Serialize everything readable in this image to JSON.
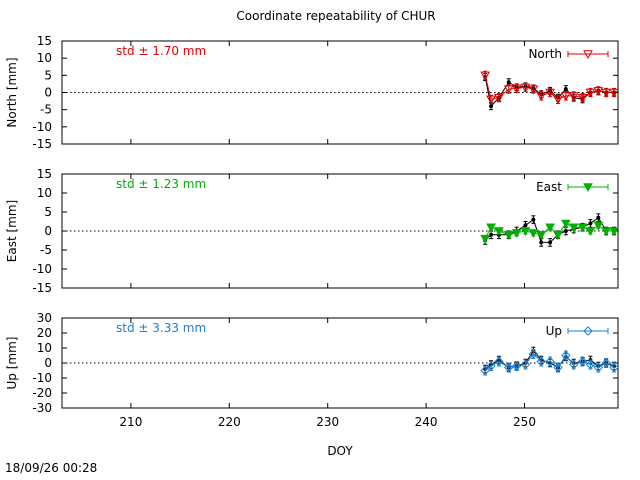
{
  "title": "Coordinate repeatability of CHUR",
  "timestamp": "18/09/26 00:28",
  "chart_data": [
    {
      "type": "line",
      "panel": "north",
      "ylabel": "North [mm]",
      "legend": "North",
      "legend_position": "top-right",
      "std_label": "std ± 1.70 mm",
      "color": "#e00000",
      "marker": "triangle-down-open",
      "xlim": [
        203,
        259.5
      ],
      "ylim": [
        -15,
        15
      ],
      "yticks": [
        15,
        10,
        5,
        0,
        -5,
        -10,
        -15
      ],
      "zero_line": true,
      "black_series": {
        "x": [
          246,
          246.6,
          247.4,
          248.4,
          249.2,
          250.1,
          250.9,
          251.7,
          252.6,
          253.4,
          254.2,
          255.0,
          255.9,
          256.7,
          257.5,
          258.3,
          259.1
        ],
        "y": [
          4.5,
          -4,
          -1.5,
          3,
          1.5,
          1.8,
          1.2,
          -0.5,
          0.5,
          -1.5,
          1,
          -1.5,
          -2,
          0,
          0.5,
          0,
          0
        ],
        "err": [
          1,
          1,
          1,
          1,
          1,
          1,
          1,
          1,
          1,
          1,
          1,
          1,
          1,
          1,
          1,
          1,
          1
        ]
      },
      "series": {
        "name": "North",
        "x": [
          246,
          246.6,
          247.4,
          248.4,
          249.2,
          250.1,
          250.9,
          251.7,
          252.6,
          253.4,
          254.2,
          255.0,
          255.9,
          256.7,
          257.5,
          258.3,
          259.1
        ],
        "y": [
          5,
          -2,
          -1.5,
          1,
          1.2,
          1.5,
          1,
          -1,
          0,
          -2,
          -1,
          -1,
          -1.5,
          0,
          0.5,
          0,
          0
        ],
        "err": [
          1.2,
          1.2,
          1.2,
          1.2,
          1.2,
          1.2,
          1.2,
          1.2,
          1.2,
          1.2,
          1.2,
          1.2,
          1.2,
          1.2,
          1.2,
          1.2,
          1.2
        ]
      }
    },
    {
      "type": "line",
      "panel": "east",
      "ylabel": "East [mm]",
      "legend": "East",
      "legend_position": "top-right",
      "std_label": "std ± 1.23 mm",
      "color": "#00b000",
      "marker": "triangle-down-filled",
      "xlim": [
        203,
        259.5
      ],
      "ylim": [
        -15,
        15
      ],
      "yticks": [
        15,
        10,
        5,
        0,
        -5,
        -10,
        -15
      ],
      "zero_line": true,
      "black_series": {
        "x": [
          246,
          246.6,
          247.4,
          248.4,
          249.2,
          250.1,
          250.9,
          251.7,
          252.6,
          253.4,
          254.2,
          255.0,
          255.9,
          256.7,
          257.5,
          258.3,
          259.1
        ],
        "y": [
          -2.5,
          -1,
          -1,
          -1,
          0,
          1.5,
          3,
          -3,
          -3,
          -1,
          0,
          0.5,
          1,
          2,
          3.5,
          0,
          0
        ],
        "err": [
          1,
          1,
          1,
          1,
          1,
          1,
          1,
          1,
          1,
          1,
          1,
          1,
          1,
          1,
          1,
          1,
          1
        ]
      },
      "series": {
        "name": "East",
        "x": [
          246,
          246.6,
          247.4,
          248.4,
          249.2,
          250.1,
          250.9,
          251.7,
          252.6,
          253.4,
          254.2,
          255.0,
          255.9,
          256.7,
          257.5,
          258.3,
          259.1
        ],
        "y": [
          -2,
          1,
          0,
          -1,
          -0.5,
          0,
          -0.5,
          -1,
          1,
          -1,
          2,
          1,
          1,
          0,
          1.5,
          0,
          0
        ],
        "err": [
          0.8,
          0.8,
          0.8,
          0.8,
          0.8,
          0.8,
          0.8,
          0.8,
          0.8,
          0.8,
          0.8,
          0.8,
          0.8,
          0.8,
          0.8,
          0.8,
          0.8
        ]
      }
    },
    {
      "type": "line",
      "panel": "up",
      "ylabel": "Up [mm]",
      "legend": "Up",
      "legend_position": "top-right",
      "std_label": "std ± 3.33 mm",
      "color": "#1e7fd0",
      "marker": "diamond-open",
      "xlim": [
        203,
        259.5
      ],
      "ylim": [
        -30,
        30
      ],
      "yticks": [
        30,
        20,
        10,
        0,
        -10,
        -20,
        -30
      ],
      "xticks": [
        210,
        220,
        230,
        240,
        250
      ],
      "xlabel": "DOY",
      "zero_line": true,
      "black_series": {
        "x": [
          246,
          246.6,
          247.4,
          248.4,
          249.2,
          250.1,
          250.9,
          251.7,
          252.6,
          253.4,
          254.2,
          255.0,
          255.9,
          256.7,
          257.5,
          258.3,
          259.1
        ],
        "y": [
          -4,
          -1,
          2,
          -3,
          -2,
          0,
          8,
          2,
          0,
          -3,
          4,
          0,
          1,
          2,
          -2,
          0,
          -2
        ],
        "err": [
          2.5,
          2.5,
          2.5,
          2.5,
          2.5,
          2.5,
          2.5,
          2.5,
          2.5,
          2.5,
          2.5,
          2.5,
          2.5,
          2.5,
          2.5,
          2.5,
          2.5
        ]
      },
      "series": {
        "name": "Up",
        "x": [
          246,
          246.6,
          247.4,
          248.4,
          249.2,
          250.1,
          250.9,
          251.7,
          252.6,
          253.4,
          254.2,
          255.0,
          255.9,
          256.7,
          257.5,
          258.3,
          259.1
        ],
        "y": [
          -5,
          -2,
          1,
          -3,
          -2,
          -1,
          6,
          1,
          1,
          -3,
          5,
          -1,
          1,
          -1,
          -3,
          0,
          -3
        ],
        "err": [
          3,
          3,
          3,
          3,
          3,
          3,
          3,
          3,
          3,
          3,
          3,
          3,
          3,
          3,
          3,
          3,
          3
        ]
      }
    }
  ]
}
